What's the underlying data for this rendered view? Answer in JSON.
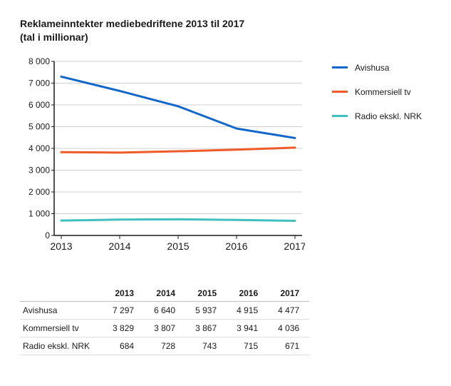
{
  "title_line1": "Reklameinntekter mediebedriftene 2013 til 2017",
  "title_line2": "(tal i millionar)",
  "chart": {
    "type": "line",
    "background_color": "#ffffff",
    "axis_color": "#1a1a1a",
    "grid_color": "#cfcfcf",
    "tick_label_color": "#1a1a1a",
    "tick_fontsize": 12,
    "x_label_fontsize": 14,
    "line_width": 3,
    "ylim": [
      0,
      8000
    ],
    "ytick_step": 1000,
    "yticks": [
      "0",
      "1 000",
      "2 000",
      "3 000",
      "4 000",
      "5 000",
      "6 000",
      "7 000",
      "8 000"
    ],
    "categories": [
      "2013",
      "2014",
      "2015",
      "2016",
      "2017"
    ],
    "series": [
      {
        "name": "Avishusa",
        "color": "#1167c9",
        "values": [
          7297,
          6640,
          5937,
          4915,
          4477
        ]
      },
      {
        "name": "Kommersiell tv",
        "color": "#ef5a28",
        "values": [
          3829,
          3807,
          3867,
          3941,
          4036
        ]
      },
      {
        "name": "Radio ekskl. NRK",
        "color": "#3fbfbf",
        "values": [
          684,
          728,
          743,
          715,
          671
        ]
      }
    ]
  },
  "table": {
    "columns": [
      "2013",
      "2014",
      "2015",
      "2016",
      "2017"
    ],
    "rows": [
      {
        "label": "Avishusa",
        "cells": [
          "7 297",
          "6 640",
          "5 937",
          "4 915",
          "4 477"
        ]
      },
      {
        "label": "Kommersiell tv",
        "cells": [
          "3 829",
          "3 807",
          "3 867",
          "3 941",
          "4 036"
        ]
      },
      {
        "label": "Radio ekskl. NRK",
        "cells": [
          "684",
          "728",
          "743",
          "715",
          "671"
        ]
      }
    ]
  }
}
